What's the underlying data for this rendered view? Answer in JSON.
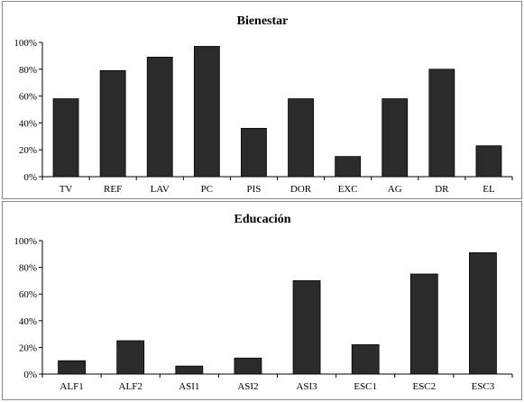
{
  "chart_data": [
    {
      "type": "bar",
      "title": "Bienestar",
      "categories": [
        "TV",
        "REF",
        "LAV",
        "PC",
        "PIS",
        "DOR",
        "EXC",
        "AG",
        "DR",
        "EL"
      ],
      "values": [
        58,
        79,
        89,
        97,
        36,
        58,
        15,
        58,
        80,
        23
      ],
      "ylim": [
        0,
        100
      ],
      "yticks": [
        "0%",
        "20%",
        "40%",
        "60%",
        "80%",
        "100%"
      ],
      "grid": false,
      "fill_color": "#2b2b2b"
    },
    {
      "type": "bar",
      "title": "Educación",
      "categories": [
        "ALF1",
        "ALF2",
        "ASI1",
        "ASI2",
        "ASI3",
        "ESC1",
        "ESC2",
        "ESC3"
      ],
      "values": [
        10,
        25,
        6,
        12,
        70,
        22,
        75,
        91
      ],
      "ylim": [
        0,
        100
      ],
      "yticks": [
        "0%",
        "20%",
        "40%",
        "60%",
        "80%",
        "100%"
      ],
      "grid": false,
      "fill_color": "#2b2b2b"
    }
  ]
}
